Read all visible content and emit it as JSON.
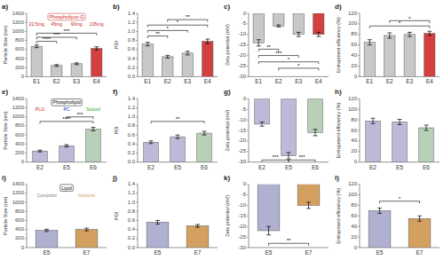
{
  "chart_data": [
    {
      "type": "bar",
      "title": "a)",
      "categories": [
        "E1",
        "E2",
        "E3",
        "E4"
      ],
      "values": [
        670,
        245,
        285,
        625
      ],
      "errors": [
        30,
        20,
        20,
        35
      ],
      "colors": [
        "#c8c8c8",
        "#c8c8c8",
        "#c8c8c8",
        "#d44040"
      ],
      "ylabel": "Particle Size (nm)",
      "ylim": [
        0,
        1400
      ],
      "yticks": [
        0,
        200,
        400,
        600,
        800,
        1000,
        1200,
        1400
      ],
      "annotations": [
        {
          "text": "****",
          "from": "E1",
          "to": "E2",
          "y": 780
        },
        {
          "text": "***",
          "from": "E1",
          "to": "E3",
          "y": 870
        },
        {
          "text": "***",
          "from": "E1",
          "to": "E4",
          "y": 960
        },
        {
          "text": "Phospholipon G",
          "color": "#cc2222",
          "labels": [
            {
              "text": "22.5mg",
              "color": "#cc2222"
            },
            {
              "text": "45mg",
              "color": "#cc2222"
            },
            {
              "text": "90mg",
              "color": "#cc2222"
            },
            {
              "text": "135mg",
              "color": "#cc2222"
            }
          ]
        }
      ]
    },
    {
      "type": "bar",
      "title": "b)",
      "categories": [
        "E1",
        "E2",
        "E3",
        "E4"
      ],
      "values": [
        0.72,
        0.44,
        0.52,
        0.78
      ],
      "errors": [
        0.04,
        0.03,
        0.04,
        0.05
      ],
      "colors": [
        "#c8c8c8",
        "#c8c8c8",
        "#c8c8c8",
        "#d44040"
      ],
      "ylabel": "PDI",
      "ylim": [
        0,
        1.4
      ],
      "yticks": [
        {
          "value": 0,
          "label": "0.0"
        },
        0.2,
        0.4,
        0.6,
        0.8,
        {
          "value": 1,
          "label": "1.0"
        },
        1.2,
        1.4
      ],
      "annotations": [
        {
          "text": "**",
          "from": "E1",
          "to": "E2",
          "y": 0.9
        },
        {
          "text": "*",
          "from": "E1",
          "to": "E3",
          "y": 1.02
        },
        {
          "text": "*",
          "from": "E1",
          "to": "E4",
          "y": 1.14
        },
        {
          "text": "**",
          "from": "E2",
          "to": "E4",
          "y": 1.26
        }
      ]
    },
    {
      "type": "bar",
      "title": "c)",
      "categories": [
        "E1",
        "E2",
        "E3",
        "E4"
      ],
      "values": [
        -14,
        -6,
        -10,
        -10
      ],
      "errors": [
        1.5,
        0.5,
        1,
        1
      ],
      "colors": [
        "#c8c8c8",
        "#c8c8c8",
        "#c8c8c8",
        "#d44040"
      ],
      "ylabel": "Zeta potential (mV)",
      "ylim": [
        -30,
        0
      ],
      "yticks": [
        -30,
        -25,
        -20,
        -15,
        -10,
        -5,
        0
      ],
      "annotations": [
        {
          "text": "**",
          "from": "E1",
          "to": "E2",
          "y": -17
        },
        {
          "text": "***",
          "from": "E1",
          "to": "E3",
          "y": -20
        },
        {
          "text": "*",
          "from": "E1",
          "to": "E4",
          "y": -23
        },
        {
          "text": "*",
          "from": "E2",
          "to": "E4",
          "y": -26
        }
      ]
    },
    {
      "type": "bar",
      "title": "d)",
      "categories": [
        "E1",
        "E2",
        "E3",
        "E4"
      ],
      "values": [
        65,
        78,
        80,
        82
      ],
      "errors": [
        5,
        5,
        4,
        4
      ],
      "colors": [
        "#c8c8c8",
        "#c8c8c8",
        "#c8c8c8",
        "#d44040"
      ],
      "ylabel": "Entrapment efficiency (%)",
      "ylim": [
        0,
        120
      ],
      "yticks": [
        0,
        20,
        40,
        60,
        80,
        100,
        120
      ],
      "annotations": [
        {
          "text": "*",
          "from": "E1",
          "to": "E4",
          "y": 96
        },
        {
          "text": "*",
          "from": "E2",
          "to": "E4",
          "y": 106
        }
      ]
    },
    {
      "type": "bar",
      "title": "e)",
      "categories": [
        "E2",
        "E5",
        "E6"
      ],
      "values": [
        245,
        360,
        730
      ],
      "errors": [
        20,
        25,
        40
      ],
      "colors": [
        "#c0b8d8",
        "#c0b8d8",
        "#b8d0b8"
      ],
      "ylabel": "Particle Size (nm)",
      "ylim": [
        0,
        1400
      ],
      "yticks": [
        0,
        200,
        400,
        600,
        800,
        1000,
        1200,
        1400
      ],
      "annotations": [
        {
          "text": "****",
          "from": "E2",
          "to": "E6",
          "y": 900
        },
        {
          "text": "***",
          "from": "E5",
          "to": "E6",
          "y": 1000
        },
        {
          "text": "Phospholipid",
          "color": "#000000",
          "labels": [
            {
              "text": "PLG",
              "color": "#cc2222"
            },
            {
              "text": "PC",
              "color": "#2222cc"
            },
            {
              "text": "Solutol",
              "color": "#22aa22"
            }
          ]
        }
      ]
    },
    {
      "type": "bar",
      "title": "f)",
      "categories": [
        "E2",
        "E5",
        "E6"
      ],
      "values": [
        0.44,
        0.56,
        0.64
      ],
      "errors": [
        0.03,
        0.04,
        0.04
      ],
      "colors": [
        "#c0b8d8",
        "#c0b8d8",
        "#b8d0b8"
      ],
      "ylabel": "PDI",
      "ylim": [
        0,
        1.4
      ],
      "yticks": [
        {
          "value": 0,
          "label": "0.0"
        },
        0.2,
        0.4,
        0.6,
        0.8,
        {
          "value": 1,
          "label": "1.0"
        },
        1.2,
        1.4
      ],
      "annotations": [
        {
          "text": "**",
          "from": "E2",
          "to": "E6",
          "y": 0.9
        }
      ]
    },
    {
      "type": "bar",
      "title": "g)",
      "categories": [
        "E2",
        "E5",
        "E6"
      ],
      "values": [
        -12,
        -27,
        -16
      ],
      "errors": [
        1,
        1.5,
        1.5
      ],
      "colors": [
        "#c0b8d8",
        "#c0b8d8",
        "#b8d0b8"
      ],
      "ylabel": "Zeta potential (mV)",
      "ylim": [
        -30,
        0
      ],
      "yticks": [
        -30,
        -25,
        -20,
        -15,
        -10,
        -5,
        0
      ],
      "annotations": [
        {
          "text": "***",
          "from": "E2",
          "to": "E5",
          "y": -29
        },
        {
          "text": "***",
          "from": "E5",
          "to": "E6",
          "y": -29
        }
      ]
    },
    {
      "type": "bar",
      "title": "h)",
      "categories": [
        "E2",
        "E5",
        "E6"
      ],
      "values": [
        78,
        76,
        65
      ],
      "errors": [
        5,
        5,
        5
      ],
      "colors": [
        "#c0b8d8",
        "#c0b8d8",
        "#b8d0b8"
      ],
      "ylabel": "Entrapment efficiency (%)",
      "ylim": [
        0,
        120
      ],
      "yticks": [
        0,
        20,
        40,
        60,
        80,
        100,
        120
      ]
    },
    {
      "type": "bar",
      "title": "i)",
      "categories": [
        "E5",
        "E7"
      ],
      "values": [
        380,
        400
      ],
      "errors": [
        25,
        30
      ],
      "colors": [
        "#b0b0d0",
        "#d4a060"
      ],
      "ylabel": "Particle Size (nm)",
      "ylim": [
        0,
        1400
      ],
      "yticks": [
        0,
        200,
        400,
        600,
        800,
        1000,
        1200,
        1400
      ],
      "annotations": [
        {
          "text": "Lipid",
          "color": "#000000",
          "labels": [
            {
              "text": "Compritol",
              "color": "#808090"
            },
            {
              "text": "Gelucire",
              "color": "#d4a060"
            }
          ]
        }
      ]
    },
    {
      "type": "bar",
      "title": "j)",
      "categories": [
        "E5",
        "E7"
      ],
      "values": [
        0.56,
        0.48
      ],
      "errors": [
        0.04,
        0.03
      ],
      "colors": [
        "#b0b0d0",
        "#d4a060"
      ],
      "ylabel": "PDI",
      "ylim": [
        0,
        1.4
      ],
      "yticks": [
        {
          "value": 0,
          "label": "0.0"
        },
        0.2,
        0.4,
        0.6,
        0.8,
        {
          "value": 1,
          "label": "1.0"
        },
        1.2,
        1.4
      ]
    },
    {
      "type": "bar",
      "title": "k)",
      "categories": [
        "E5",
        "E7"
      ],
      "values": [
        -22,
        -10
      ],
      "errors": [
        2,
        1.5
      ],
      "colors": [
        "#b0b0d0",
        "#d4a060"
      ],
      "ylabel": "Zeta potential (mV)",
      "ylim": [
        -30,
        0
      ],
      "yticks": [
        -30,
        -25,
        -20,
        -15,
        -10,
        -5,
        0
      ],
      "annotations": [
        {
          "text": "**",
          "from": "E5",
          "to": "E7",
          "y": -28
        }
      ]
    },
    {
      "type": "bar",
      "title": "l)",
      "categories": [
        "E5",
        "E7"
      ],
      "values": [
        70,
        55
      ],
      "errors": [
        5,
        5
      ],
      "colors": [
        "#b0b0d0",
        "#d4a060"
      ],
      "ylabel": "Entrapment efficiency (%)",
      "ylim": [
        0,
        120
      ],
      "yticks": [
        0,
        20,
        40,
        60,
        80,
        100,
        120
      ],
      "annotations": [
        {
          "text": "*",
          "from": "E5",
          "to": "E7",
          "y": 88
        }
      ]
    }
  ]
}
